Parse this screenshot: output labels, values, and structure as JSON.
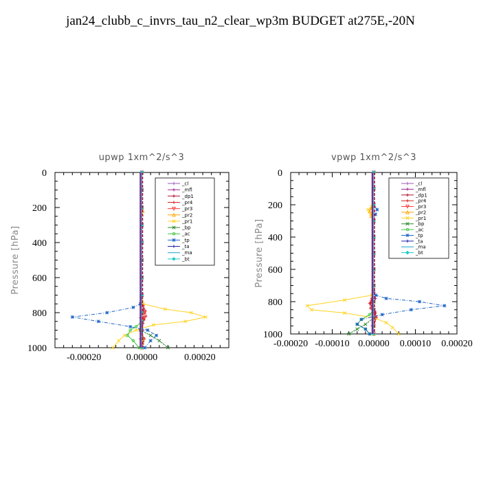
{
  "title": "jan24_clubb_c_invrs_tau_n2_clear_wp3m  BUDGET at275E,-20N",
  "chart_data": [
    {
      "type": "line",
      "subtitle": "upwp   1xm^2/s^3",
      "ylabel": "Pressure [hPa]",
      "xlim": [
        -0.0003,
        0.0003
      ],
      "ylim": [
        1000,
        0
      ],
      "yticks": [
        0,
        200,
        400,
        600,
        800,
        1000
      ],
      "ytick_labels": [
        "0",
        "200",
        "400",
        "600",
        "800",
        "1000"
      ],
      "xticks": [
        -0.0002,
        0,
        0.0002
      ],
      "xtick_labels": [
        "-0.00020",
        "0.00000",
        "0.00020"
      ],
      "legend_position": "top-right",
      "series": [
        {
          "name": "_cl",
          "color": "#9a5bb5",
          "marker": "+",
          "p": [
            0,
            100,
            200,
            300,
            400,
            500,
            600,
            700,
            800,
            850,
            900,
            950,
            1000
          ],
          "x": [
            0,
            0,
            0,
            0,
            0,
            0,
            0,
            0,
            0,
            0,
            0,
            0,
            0
          ]
        },
        {
          "name": "_mfl",
          "color": "#a0208f",
          "marker": "+",
          "p": [
            0,
            100,
            200,
            300,
            400,
            500,
            600,
            700,
            780,
            800,
            830,
            860,
            900,
            950,
            1000
          ],
          "x": [
            0,
            0,
            0,
            0,
            0,
            0,
            0,
            0,
            5e-06,
            0,
            -5e-06,
            4e-06,
            0,
            -5e-06,
            0
          ]
        },
        {
          "name": "_dp1",
          "color": "#b01030",
          "marker": "+",
          "p": [
            0,
            100,
            200,
            300,
            400,
            500,
            600,
            700,
            760,
            800,
            830,
            860,
            900,
            950,
            1000
          ],
          "x": [
            0,
            0,
            0,
            0,
            0,
            0,
            0,
            0,
            4e-06,
            8e-06,
            6e-06,
            0,
            -4e-06,
            6e-06,
            0
          ]
        },
        {
          "name": "_pr4",
          "color": "#d02020",
          "marker": "+",
          "p": [
            0,
            100,
            200,
            300,
            400,
            500,
            600,
            700,
            760,
            790,
            820,
            840,
            870,
            900,
            950,
            1000
          ],
          "x": [
            0,
            0,
            0,
            0,
            0,
            0,
            0,
            0,
            5e-06,
            1.2e-05,
            1.4e-05,
            8e-06,
            0,
            -6e-06,
            8e-06,
            4e-06
          ]
        },
        {
          "name": "_pr3",
          "color": "#ff3a3a",
          "marker": "v",
          "p": [
            0,
            100,
            200,
            300,
            400,
            500,
            600,
            700,
            760,
            800,
            830,
            860,
            900,
            950,
            1000
          ],
          "x": [
            0,
            0,
            0,
            0,
            0,
            0,
            0,
            0,
            4e-06,
            9e-06,
            6e-06,
            0,
            -5e-06,
            5e-06,
            0
          ]
        },
        {
          "name": "_pr2",
          "color": "#ffa500",
          "marker": "^",
          "p": [
            0,
            100,
            200,
            220,
            240,
            300,
            400,
            500,
            600,
            700,
            800,
            900,
            950,
            1000
          ],
          "x": [
            0,
            0,
            0,
            3e-06,
            0,
            0,
            0,
            0,
            0,
            0,
            0,
            0,
            3e-06,
            0
          ]
        },
        {
          "name": "_pr1",
          "color": "#ffd21f",
          "marker": "x",
          "p": [
            0,
            100,
            200,
            300,
            400,
            500,
            600,
            700,
            750,
            780,
            800,
            825,
            850,
            870,
            900,
            930,
            960,
            1000
          ],
          "x": [
            0,
            0,
            0,
            0,
            0,
            0,
            0,
            0,
            5e-06,
            8e-05,
            0.00017,
            0.00022,
            0.00015,
            4e-05,
            -2e-05,
            -6e-05,
            -8e-05,
            -0.0001
          ]
        },
        {
          "name": "_bp",
          "color": "#2a8a2a",
          "marker": "x",
          "p": [
            0,
            100,
            200,
            300,
            400,
            500,
            600,
            700,
            800,
            850,
            900,
            930,
            960,
            1000
          ],
          "x": [
            0,
            0,
            0,
            0,
            0,
            0,
            0,
            0,
            0,
            0,
            -5e-06,
            3e-05,
            6e-05,
            9e-05
          ]
        },
        {
          "name": "_ac",
          "color": "#3ac43a",
          "marker": "o",
          "p": [
            0,
            100,
            200,
            300,
            400,
            500,
            600,
            700,
            800,
            850,
            880,
            900,
            930,
            960,
            1000
          ],
          "x": [
            0,
            0,
            0,
            0,
            0,
            0,
            0,
            0,
            0,
            0,
            -2e-05,
            -4e-05,
            -5e-05,
            -3e-05,
            -1e-05
          ]
        },
        {
          "name": "_tp",
          "color": "#1e64c8",
          "marker": "*",
          "p": [
            0,
            100,
            200,
            300,
            400,
            500,
            600,
            700,
            750,
            770,
            800,
            825,
            850,
            880,
            900,
            930,
            960,
            1000
          ],
          "x": [
            0,
            0,
            0,
            0,
            0,
            0,
            0,
            0,
            -5e-06,
            -3e-05,
            -0.00012,
            -0.00024,
            -0.00015,
            -4e-05,
            2e-05,
            5e-05,
            3e-05,
            1e-05
          ]
        },
        {
          "name": "_ta",
          "color": "#2222aa",
          "marker": "+",
          "p": [
            0,
            100,
            200,
            300,
            400,
            500,
            600,
            700,
            800,
            850,
            900,
            950,
            1000
          ],
          "x": [
            0,
            0,
            0,
            0,
            0,
            0,
            0,
            0,
            0,
            0,
            3e-06,
            0,
            0
          ]
        },
        {
          "name": "_ma",
          "color": "#1a9fd0",
          "marker": "",
          "p": [
            0,
            100,
            200,
            300,
            400,
            500,
            600,
            700,
            800,
            850,
            900,
            950,
            1000
          ],
          "x": [
            0,
            0,
            0,
            0,
            0,
            0,
            0,
            0,
            0,
            0,
            0,
            0,
            0
          ]
        },
        {
          "name": "_bt",
          "color": "#20c8c8",
          "marker": "d",
          "p": [
            0,
            100,
            200,
            300,
            400,
            500,
            600,
            700,
            800,
            850,
            900,
            950,
            1000
          ],
          "x": [
            0,
            0,
            0,
            0,
            0,
            0,
            0,
            0,
            0,
            0,
            0,
            0,
            0
          ]
        }
      ]
    },
    {
      "type": "line",
      "subtitle": "vpwp   1xm^2/s^3",
      "ylabel": "Pressure [hPa]",
      "xlim": [
        -0.0002,
        0.0002
      ],
      "ylim": [
        1000,
        0
      ],
      "yticks": [
        0,
        200,
        400,
        600,
        800,
        1000
      ],
      "ytick_labels": [
        "0",
        "200",
        "400",
        "600",
        "800",
        "1000"
      ],
      "xticks": [
        -0.0002,
        -0.0001,
        0,
        0.0001,
        0.0002
      ],
      "xtick_labels": [
        "-0.00020",
        "-0.00010",
        "0.00000",
        "0.00010",
        "0.00020"
      ],
      "legend_position": "top-right",
      "series": [
        {
          "name": "_cl",
          "color": "#9a5bb5",
          "marker": "+",
          "p": [
            0,
            100,
            200,
            300,
            400,
            500,
            600,
            700,
            800,
            850,
            900,
            950,
            1000
          ],
          "x": [
            0,
            0,
            0,
            0,
            0,
            0,
            0,
            0,
            0,
            0,
            0,
            0,
            0
          ]
        },
        {
          "name": "_mfl",
          "color": "#a0208f",
          "marker": "+",
          "p": [
            0,
            100,
            200,
            300,
            400,
            500,
            600,
            700,
            780,
            800,
            830,
            860,
            900,
            950,
            1000
          ],
          "x": [
            0,
            0,
            0,
            0,
            0,
            0,
            0,
            0,
            4e-06,
            0,
            -4e-06,
            3e-06,
            0,
            -4e-06,
            0
          ]
        },
        {
          "name": "_dp1",
          "color": "#b01030",
          "marker": "+",
          "p": [
            0,
            100,
            200,
            300,
            400,
            500,
            600,
            700,
            780,
            810,
            840,
            870,
            900,
            950,
            1000
          ],
          "x": [
            0,
            0,
            0,
            0,
            0,
            0,
            0,
            0,
            -4e-06,
            -8e-06,
            -4e-06,
            4e-06,
            6e-06,
            0,
            0
          ]
        },
        {
          "name": "_pr4",
          "color": "#d02020",
          "marker": "+",
          "p": [
            0,
            100,
            200,
            300,
            400,
            500,
            600,
            700,
            780,
            810,
            840,
            870,
            900,
            950,
            1000
          ],
          "x": [
            0,
            0,
            0,
            0,
            0,
            0,
            0,
            0,
            -5e-06,
            -1e-05,
            -8e-06,
            0,
            5e-06,
            0,
            0
          ]
        },
        {
          "name": "_pr3",
          "color": "#ff3a3a",
          "marker": "v",
          "p": [
            0,
            100,
            200,
            300,
            400,
            500,
            600,
            700,
            800,
            850,
            900,
            950,
            1000
          ],
          "x": [
            0,
            0,
            0,
            0,
            0,
            0,
            0,
            0,
            -5e-06,
            0,
            4e-06,
            0,
            0
          ]
        },
        {
          "name": "_pr2",
          "color": "#ffa500",
          "marker": "^",
          "p": [
            0,
            100,
            200,
            220,
            240,
            270,
            300,
            400,
            500,
            600,
            700,
            800,
            900,
            950,
            1000
          ],
          "x": [
            0,
            0,
            0,
            -6e-06,
            -1e-05,
            -6e-06,
            0,
            0,
            0,
            0,
            0,
            0,
            0,
            0,
            0
          ]
        },
        {
          "name": "_pr1",
          "color": "#ffd21f",
          "marker": "x",
          "p": [
            0,
            100,
            200,
            210,
            230,
            260,
            300,
            400,
            500,
            600,
            700,
            760,
            790,
            825,
            850,
            870,
            900,
            930,
            960,
            1000
          ],
          "x": [
            0,
            0,
            0,
            -6e-06,
            -1.4e-05,
            -8e-06,
            0,
            0,
            0,
            0,
            0,
            -5e-06,
            -7e-05,
            -0.00016,
            -0.00015,
            -7e-05,
            0,
            3e-05,
            4.5e-05,
            6e-05
          ]
        },
        {
          "name": "_bp",
          "color": "#2a8a2a",
          "marker": "x",
          "p": [
            0,
            100,
            200,
            300,
            400,
            500,
            600,
            700,
            800,
            850,
            900,
            940,
            970,
            1000
          ],
          "x": [
            0,
            0,
            0,
            0,
            0,
            0,
            0,
            0,
            0,
            0,
            0,
            -2e-05,
            -4e-05,
            -6e-05
          ]
        },
        {
          "name": "_ac",
          "color": "#3ac43a",
          "marker": "o",
          "p": [
            0,
            100,
            200,
            300,
            400,
            500,
            600,
            700,
            800,
            850,
            880,
            910,
            940,
            970,
            1000
          ],
          "x": [
            0,
            0,
            0,
            0,
            0,
            0,
            0,
            0,
            0,
            0,
            -1e-05,
            -3e-05,
            -4e-05,
            -2e-05,
            -1e-05
          ]
        },
        {
          "name": "_tp",
          "color": "#1e64c8",
          "marker": "*",
          "p": [
            0,
            100,
            200,
            230,
            260,
            300,
            400,
            500,
            600,
            700,
            760,
            780,
            800,
            825,
            850,
            880,
            910,
            940,
            970,
            1000
          ],
          "x": [
            0,
            0,
            0,
            8e-06,
            4e-06,
            0,
            0,
            0,
            0,
            0,
            5e-06,
            3e-05,
            0.00011,
            0.00017,
            9e-05,
            2e-05,
            -3e-05,
            -4e-05,
            -2e-05,
            -1e-05
          ]
        },
        {
          "name": "_ta",
          "color": "#2222aa",
          "marker": "+",
          "p": [
            0,
            100,
            200,
            300,
            400,
            500,
            600,
            700,
            800,
            850,
            900,
            950,
            1000
          ],
          "x": [
            0,
            0,
            0,
            0,
            0,
            0,
            0,
            0,
            0,
            0,
            0,
            0,
            0
          ]
        },
        {
          "name": "_ma",
          "color": "#1a9fd0",
          "marker": "",
          "p": [
            0,
            100,
            200,
            300,
            400,
            500,
            600,
            700,
            800,
            850,
            900,
            950,
            1000
          ],
          "x": [
            0,
            0,
            0,
            0,
            0,
            0,
            0,
            0,
            0,
            0,
            0,
            0,
            0
          ]
        },
        {
          "name": "_bt",
          "color": "#20c8c8",
          "marker": "d",
          "p": [
            0,
            100,
            200,
            300,
            400,
            500,
            600,
            700,
            800,
            850,
            900,
            950,
            1000
          ],
          "x": [
            0,
            0,
            0,
            0,
            0,
            0,
            0,
            0,
            0,
            0,
            0,
            0,
            0
          ]
        }
      ]
    }
  ]
}
